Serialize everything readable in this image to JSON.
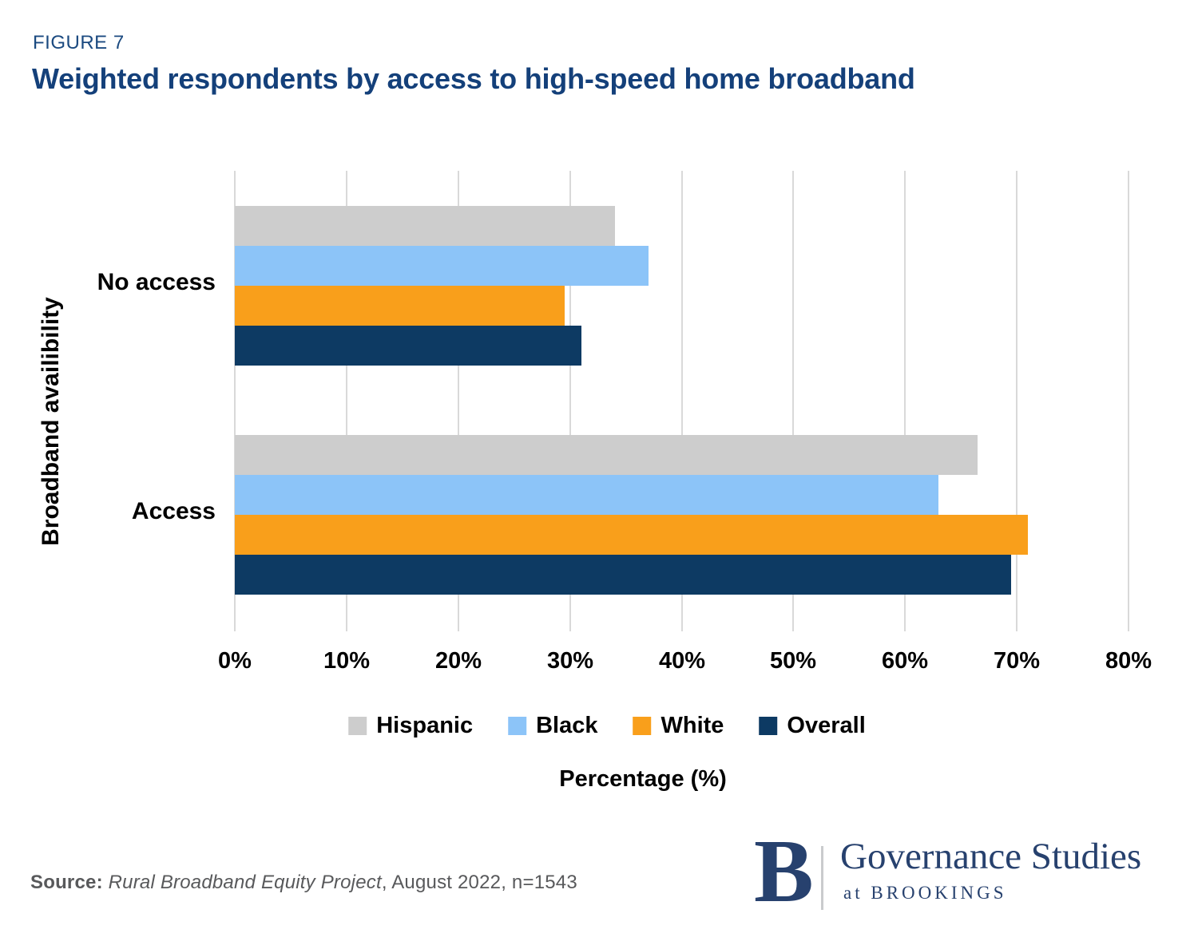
{
  "figure": {
    "label": "FIGURE 7",
    "title": "Weighted respondents by access to high-speed home broadband"
  },
  "chart_data": {
    "type": "bar",
    "orientation": "horizontal",
    "title": "Weighted respondents by access to high-speed home broadband",
    "categories": [
      "No access",
      "Access"
    ],
    "series": [
      {
        "name": "Hispanic",
        "color": "#cdcdcd",
        "values": [
          34,
          66.5
        ]
      },
      {
        "name": "Black",
        "color": "#8cc4f8",
        "values": [
          37,
          63
        ]
      },
      {
        "name": "White",
        "color": "#f99f1b",
        "values": [
          29.5,
          71
        ]
      },
      {
        "name": "Overall",
        "color": "#0d3a63",
        "values": [
          31,
          69.5
        ]
      }
    ],
    "xlabel": "Percentage (%)",
    "ylabel": "Broadband availibility",
    "x_ticks": [
      "0%",
      "10%",
      "20%",
      "30%",
      "40%",
      "50%",
      "60%",
      "70%",
      "80%"
    ],
    "xlim": [
      0,
      80
    ],
    "grid": "vertical-only",
    "gridline_color": "#d9d9d9",
    "legend_position": "bottom",
    "bar_draw_order": "Hispanic, Black, White, Overall (top to bottom in each group)"
  },
  "source": {
    "prefix": "Source: ",
    "italic": "Rural Broadband Equity Project",
    "rest": ", August 2022, n=1543"
  },
  "logo": {
    "initial": "B",
    "name": "Governance Studies",
    "sub": "at BROOKINGS"
  },
  "colors": {
    "title_navy": "#14407a",
    "figure_label_navy": "#1b4a80",
    "text_black": "#000000",
    "source_gray": "#58595b",
    "logo_navy": "#27416e"
  }
}
